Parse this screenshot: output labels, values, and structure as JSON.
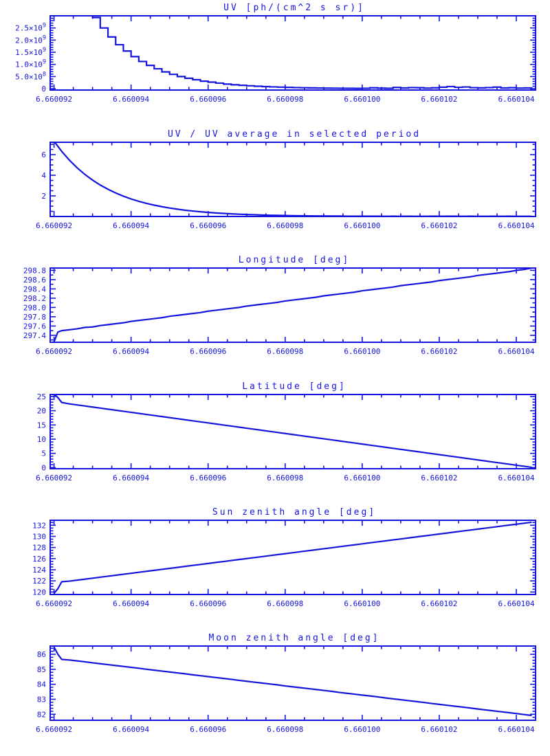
{
  "page": {
    "background": "#ffffff",
    "plot_color": "#1414dc"
  },
  "chart_data": {
    "type": "line",
    "grid": "off",
    "legend": "none",
    "x_axis": {
      "range": [
        6.6600919,
        6.6601045
      ],
      "tick_values": [
        6.660092,
        6.660094,
        6.660096,
        6.660098,
        6.6601,
        6.660102,
        6.660104
      ],
      "tick_labels": [
        "6.660092",
        "6.660094",
        "6.660096",
        "6.660098",
        "6.660100",
        "6.660102",
        "6.660104"
      ],
      "minor_step": 5e-07
    },
    "x_grids": {
      "standard": [
        6.660092,
        6.6600922,
        6.6600924,
        6.6600926,
        6.6600928,
        6.660093,
        6.6600932,
        6.6600934,
        6.6600936,
        6.6600938,
        6.660094,
        6.6600942,
        6.6600944,
        6.6600946,
        6.6600948,
        6.660095,
        6.6600952,
        6.6600954,
        6.6600956,
        6.6600958,
        6.660096,
        6.6600962,
        6.6600964,
        6.6600966,
        6.6600968,
        6.660097,
        6.6600972,
        6.6600974,
        6.6600976,
        6.6600978,
        6.660098,
        6.6600982,
        6.6600984,
        6.6600986,
        6.6600988,
        6.660099,
        6.6600992,
        6.6600994,
        6.6600996,
        6.6600998,
        6.6601,
        6.6601002,
        6.6601004,
        6.6601006,
        6.6601008,
        6.660101,
        6.6601012,
        6.6601014,
        6.6601016,
        6.6601018,
        6.660102,
        6.6601022,
        6.6601024,
        6.6601026,
        6.6601028,
        6.660103,
        6.6601032,
        6.6601034,
        6.6601036,
        6.6601038,
        6.660104,
        6.6601042,
        6.6601044
      ],
      "with_jump": [
        6.660092,
        6.6600921,
        6.6600922,
        6.6600924,
        6.6600926,
        6.6600928,
        6.660093,
        6.6600932,
        6.6600934,
        6.6600936,
        6.6600938,
        6.660094,
        6.6600942,
        6.6600944,
        6.6600946,
        6.6600948,
        6.660095,
        6.6600952,
        6.6600954,
        6.6600956,
        6.6600958,
        6.660096,
        6.6600962,
        6.6600964,
        6.6600966,
        6.6600968,
        6.660097,
        6.6600972,
        6.6600974,
        6.6600976,
        6.6600978,
        6.660098,
        6.6600982,
        6.6600984,
        6.6600986,
        6.6600988,
        6.660099,
        6.6600992,
        6.6600994,
        6.6600996,
        6.6600998,
        6.6601,
        6.6601002,
        6.6601004,
        6.6601006,
        6.6601008,
        6.660101,
        6.6601012,
        6.6601014,
        6.6601016,
        6.6601018,
        6.660102,
        6.6601022,
        6.6601024,
        6.6601026,
        6.6601028,
        6.660103,
        6.6601032,
        6.6601034,
        6.6601036,
        6.6601038,
        6.660104,
        6.6601042,
        6.6601044
      ]
    },
    "charts": [
      {
        "id": "uv-flux",
        "title": "UV [ph/(cm^2 s sr)]",
        "render": "step",
        "y_range": [
          -55000000.0,
          3000000000.0
        ],
        "y_tick_values": [
          0,
          500000000.0,
          1000000000.0,
          1500000000.0,
          2000000000.0,
          2500000000.0
        ],
        "y_tick_labels": [
          "0",
          "5.0×10^8",
          "1.0×10^9",
          "1.5×10^9",
          "2.0×10^9",
          "2.5×10^9"
        ],
        "y_minor_step": 100000000.0,
        "series": {
          "x_grid": "standard",
          "y": [
            6520000000.0,
            5560000000.0,
            4730000000.0,
            4030000000.0,
            3440000000.0,
            2930000000.0,
            2500000000.0,
            2130000000.0,
            1810000000.0,
            1550000000.0,
            1320000000.0,
            1120000000.0,
            960000000.0,
            820000000.0,
            690000000.0,
            590000000.0,
            500000000.0,
            430000000.0,
            370000000.0,
            310000000.0,
            270000000.0,
            230000000.0,
            190000000.0,
            160000000.0,
            140000000.0,
            120000000.0,
            100000000.0,
            87000000.0,
            74000000.0,
            63000000.0,
            54000000.0,
            46000000.0,
            39000000.0,
            33000000.0,
            28000000.0,
            24000000.0,
            21000000.0,
            18000000.0,
            15000000.0,
            13000000.0,
            18000000.0,
            36000000.0,
            22000000.0,
            15000000.0,
            52000000.0,
            30000000.0,
            46000000.0,
            40000000.0,
            24000000.0,
            36000000.0,
            62000000.0,
            88000000.0,
            56000000.0,
            70000000.0,
            42000000.0,
            34000000.0,
            46000000.0,
            66000000.0,
            30000000.0,
            40000000.0,
            24000000.0,
            30000000.0,
            28000000.0
          ]
        }
      },
      {
        "id": "uv-ratio",
        "title": "UV / UV average in selected period",
        "render": "line",
        "y_range": [
          0,
          7.2
        ],
        "y_tick_values": [
          2,
          4,
          6
        ],
        "y_tick_labels": [
          "2",
          "4",
          "6"
        ],
        "y_minor_step": 0.5,
        "series": {
          "x_grid": "standard",
          "y": [
            7.3,
            6.31,
            5.46,
            4.72,
            4.08,
            3.53,
            3.05,
            2.64,
            2.28,
            1.97,
            1.7,
            1.47,
            1.27,
            1.1,
            0.95,
            0.82,
            0.71,
            0.61,
            0.53,
            0.46,
            0.4,
            0.34,
            0.3,
            0.26,
            0.22,
            0.19,
            0.17,
            0.14,
            0.12,
            0.11,
            0.09,
            0.08,
            0.07,
            0.06,
            0.05,
            0.05,
            0.04,
            0.04,
            0.03,
            0.03,
            0.03,
            0.03,
            0.03,
            0.02,
            0.03,
            0.02,
            0.03,
            0.02,
            0.02,
            0.03,
            0.02,
            0.03,
            0.03,
            0.02,
            0.03,
            0.02,
            0.02,
            0.03,
            0.02,
            0.03,
            0.02,
            0.02,
            0.02
          ]
        }
      },
      {
        "id": "longitude",
        "title": "Longitude [deg]",
        "render": "line",
        "y_range": [
          297.25,
          298.85
        ],
        "y_tick_values": [
          297.4,
          297.6,
          297.8,
          298.0,
          298.2,
          298.4,
          298.6,
          298.8
        ],
        "y_tick_labels": [
          "297.4",
          "297.6",
          "297.8",
          "298.0",
          "298.2",
          "298.4",
          "298.6",
          "298.8"
        ],
        "y_minor_step": 0.1,
        "series": {
          "x_grid": "with_jump",
          "y": [
            297.26,
            297.47,
            297.5,
            297.52,
            297.54,
            297.57,
            297.58,
            297.61,
            297.63,
            297.65,
            297.67,
            297.7,
            297.72,
            297.74,
            297.76,
            297.78,
            297.81,
            297.83,
            297.85,
            297.87,
            297.89,
            297.92,
            297.94,
            297.96,
            297.98,
            298.0,
            298.03,
            298.05,
            298.07,
            298.09,
            298.11,
            298.14,
            298.16,
            298.18,
            298.2,
            298.22,
            298.25,
            298.27,
            298.29,
            298.31,
            298.33,
            298.36,
            298.38,
            298.4,
            298.42,
            298.44,
            298.47,
            298.49,
            298.51,
            298.53,
            298.55,
            298.58,
            298.6,
            298.62,
            298.64,
            298.66,
            298.69,
            298.71,
            298.73,
            298.75,
            298.77,
            298.8,
            298.82,
            298.85
          ]
        }
      },
      {
        "id": "latitude",
        "title": "Latitude [deg]",
        "render": "line",
        "y_range": [
          -0.4,
          25.7
        ],
        "y_tick_values": [
          0,
          5,
          10,
          15,
          20,
          25
        ],
        "y_tick_labels": [
          "0",
          "5",
          "10",
          "15",
          "20",
          "25"
        ],
        "y_minor_step": 1,
        "series": {
          "x_grid": "with_jump",
          "y": [
            25.9,
            24.6,
            22.9,
            22.4,
            22.03,
            21.66,
            21.29,
            20.91,
            20.54,
            20.17,
            19.8,
            19.43,
            19.05,
            18.68,
            18.31,
            17.94,
            17.57,
            17.19,
            16.82,
            16.45,
            16.08,
            15.71,
            15.34,
            14.96,
            14.59,
            14.22,
            13.85,
            13.48,
            13.1,
            12.73,
            12.36,
            11.99,
            11.62,
            11.24,
            10.87,
            10.5,
            10.13,
            9.76,
            9.39,
            9.01,
            8.64,
            8.27,
            7.9,
            7.53,
            7.15,
            6.78,
            6.41,
            6.04,
            5.67,
            5.3,
            4.92,
            4.55,
            4.18,
            3.81,
            3.44,
            3.06,
            2.69,
            2.32,
            1.95,
            1.58,
            1.21,
            0.83,
            0.46,
            0.1
          ]
        }
      },
      {
        "id": "sun-zenith",
        "title": "Sun zenith angle [deg]",
        "render": "line",
        "y_range": [
          119.55,
          132.9
        ],
        "y_tick_values": [
          120,
          122,
          124,
          126,
          128,
          130,
          132
        ],
        "y_tick_labels": [
          "120",
          "122",
          "124",
          "126",
          "128",
          "130",
          "132"
        ],
        "y_minor_step": 0.5,
        "series": {
          "x_grid": "with_jump",
          "y": [
            119.75,
            120.6,
            121.85,
            121.95,
            122.13,
            122.3,
            122.48,
            122.66,
            122.83,
            123.01,
            123.19,
            123.36,
            123.54,
            123.72,
            123.89,
            124.07,
            124.25,
            124.42,
            124.6,
            124.78,
            124.95,
            125.13,
            125.31,
            125.48,
            125.66,
            125.84,
            126.01,
            126.19,
            126.36,
            126.54,
            126.72,
            126.89,
            127.07,
            127.25,
            127.42,
            127.6,
            127.78,
            127.95,
            128.13,
            128.31,
            128.48,
            128.66,
            128.84,
            129.01,
            129.19,
            129.37,
            129.54,
            129.72,
            129.9,
            130.07,
            130.25,
            130.43,
            130.6,
            130.78,
            130.96,
            131.13,
            131.31,
            131.49,
            131.66,
            131.84,
            132.02,
            132.19,
            132.37,
            132.55
          ]
        }
      },
      {
        "id": "moon-zenith",
        "title": "Moon zenith angle [deg]",
        "render": "line",
        "y_range": [
          81.6,
          86.55
        ],
        "y_tick_values": [
          82,
          83,
          84,
          85,
          86
        ],
        "y_tick_labels": [
          "82",
          "83",
          "84",
          "85",
          "86"
        ],
        "y_minor_step": 0.2,
        "series": {
          "x_grid": "with_jump",
          "y": [
            86.48,
            86.0,
            85.66,
            85.62,
            85.56,
            85.5,
            85.43,
            85.37,
            85.31,
            85.25,
            85.19,
            85.13,
            85.07,
            85.0,
            84.94,
            84.88,
            84.82,
            84.76,
            84.7,
            84.63,
            84.57,
            84.51,
            84.45,
            84.39,
            84.33,
            84.26,
            84.2,
            84.14,
            84.08,
            84.02,
            83.96,
            83.89,
            83.83,
            83.77,
            83.71,
            83.65,
            83.59,
            83.53,
            83.46,
            83.4,
            83.34,
            83.28,
            83.22,
            83.16,
            83.09,
            83.03,
            82.97,
            82.91,
            82.85,
            82.79,
            82.72,
            82.66,
            82.6,
            82.54,
            82.48,
            82.42,
            82.35,
            82.29,
            82.23,
            82.17,
            82.11,
            82.05,
            81.98,
            81.92
          ]
        }
      }
    ]
  }
}
